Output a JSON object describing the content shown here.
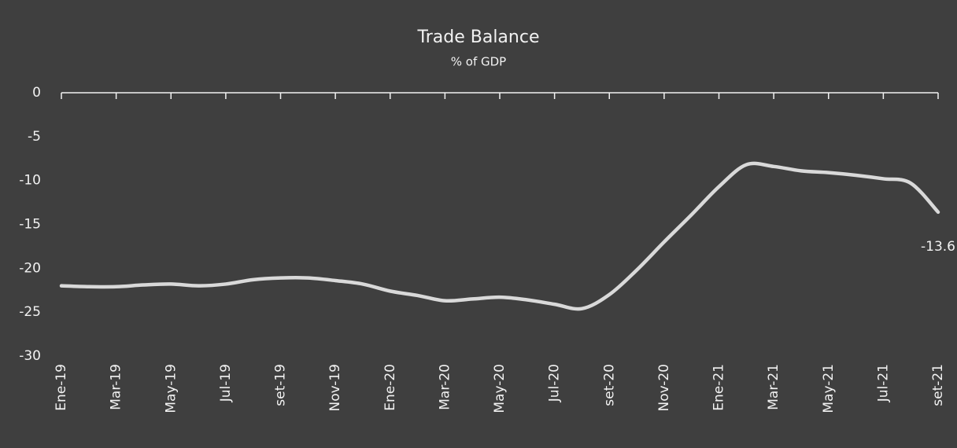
{
  "chart_data": {
    "type": "line",
    "title": "Trade Balance",
    "subtitle": "% of GDP",
    "categories": [
      "Ene-19",
      null,
      "Mar-19",
      null,
      "May-19",
      null,
      "Jul-19",
      null,
      "set-19",
      null,
      "Nov-19",
      null,
      "Ene-20",
      null,
      "Mar-20",
      null,
      "May-20",
      null,
      "Jul-20",
      null,
      "set-20",
      null,
      "Nov-20",
      null,
      "Ene-21",
      null,
      "Mar-21",
      null,
      "May-21",
      null,
      "Jul-21",
      null,
      "set-21"
    ],
    "values": [
      -22.0,
      -22.1,
      -22.1,
      -21.9,
      -21.8,
      -22.0,
      -21.8,
      -21.3,
      -21.1,
      -21.1,
      -21.4,
      -21.8,
      -22.6,
      -23.1,
      -23.7,
      -23.5,
      -23.3,
      -23.6,
      -24.1,
      -24.6,
      -23.0,
      -20.2,
      -17.0,
      -13.9,
      -10.7,
      -8.2,
      -8.4,
      -8.9,
      -9.1,
      -9.4,
      -9.8,
      -10.3,
      -13.6
    ],
    "color": "#d9d9d9",
    "ylim": [
      -30,
      0
    ],
    "yticks": [
      0,
      -5,
      -10,
      -15,
      -20,
      -25,
      -30
    ],
    "grid": false
  }
}
